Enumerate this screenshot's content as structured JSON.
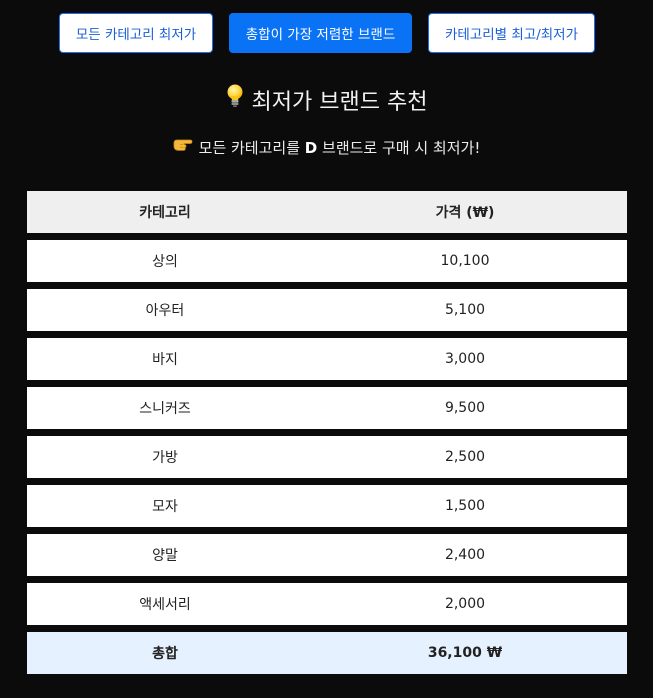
{
  "tabs": [
    {
      "label": "모든 카테고리 최저가",
      "active": false
    },
    {
      "label": "총합이 가장 저렴한 브랜드",
      "active": true
    },
    {
      "label": "카테고리별 최고/최저가",
      "active": false
    }
  ],
  "title": "최저가 브랜드 추천",
  "subtitle": {
    "prefix": "모든 카테고리를",
    "brand": "D",
    "suffix": "브랜드로 구매 시 최저가!"
  },
  "table": {
    "headers": [
      "카테고리",
      "가격 (₩)"
    ],
    "rows": [
      {
        "category": "상의",
        "price": "10,100"
      },
      {
        "category": "아우터",
        "price": "5,100"
      },
      {
        "category": "바지",
        "price": "3,000"
      },
      {
        "category": "스니커즈",
        "price": "9,500"
      },
      {
        "category": "가방",
        "price": "2,500"
      },
      {
        "category": "모자",
        "price": "1,500"
      },
      {
        "category": "양말",
        "price": "2,400"
      },
      {
        "category": "액세서리",
        "price": "2,000"
      }
    ],
    "total": {
      "label": "총합",
      "value": "36,100 ₩"
    }
  },
  "colors": {
    "background": "#0b0b0b",
    "accent": "#0a72f5",
    "total_row": "#e6f1ff",
    "header_row": "#efefef"
  },
  "icons": {
    "title_icon": "lightbulb-icon",
    "subtitle_icon": "pointing-hand-icon"
  }
}
